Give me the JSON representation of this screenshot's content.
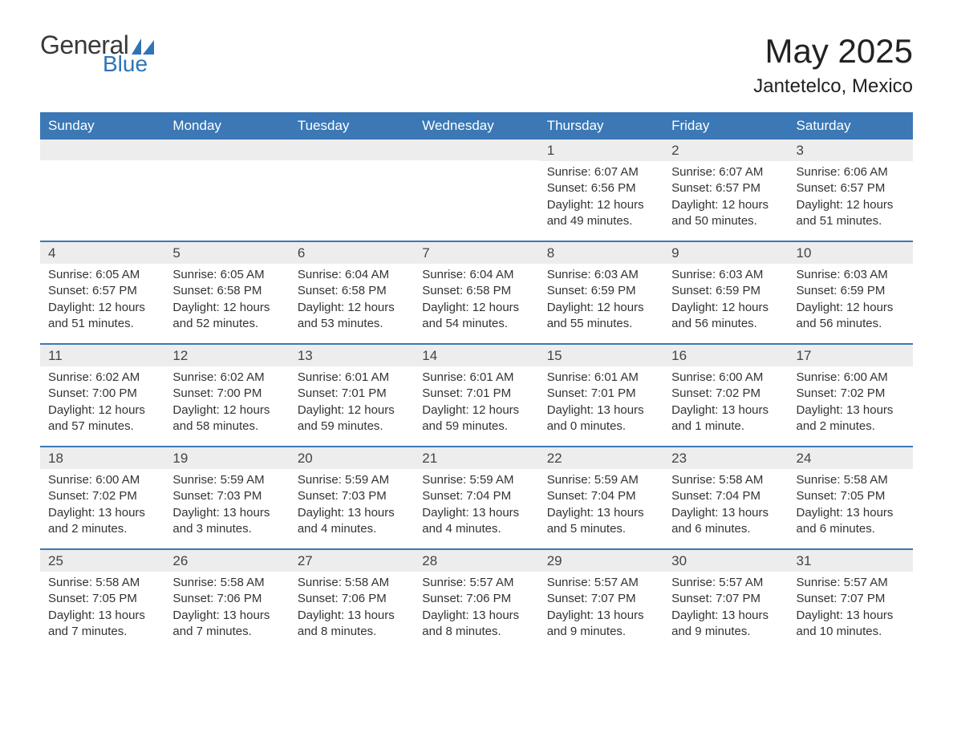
{
  "logo": {
    "word1": "General",
    "word2": "Blue",
    "flag_color": "#2e75b6"
  },
  "title": "May 2025",
  "location": "Jantetelco, Mexico",
  "colors": {
    "header_bg": "#3b78b5",
    "header_text": "#ffffff",
    "daynum_bg": "#ededed",
    "week_divider": "#3b78b5",
    "body_text": "#333333"
  },
  "weekdays": [
    "Sunday",
    "Monday",
    "Tuesday",
    "Wednesday",
    "Thursday",
    "Friday",
    "Saturday"
  ],
  "weeks": [
    [
      null,
      null,
      null,
      null,
      {
        "n": "1",
        "sr": "6:07 AM",
        "ss": "6:56 PM",
        "dl": "12 hours and 49 minutes."
      },
      {
        "n": "2",
        "sr": "6:07 AM",
        "ss": "6:57 PM",
        "dl": "12 hours and 50 minutes."
      },
      {
        "n": "3",
        "sr": "6:06 AM",
        "ss": "6:57 PM",
        "dl": "12 hours and 51 minutes."
      }
    ],
    [
      {
        "n": "4",
        "sr": "6:05 AM",
        "ss": "6:57 PM",
        "dl": "12 hours and 51 minutes."
      },
      {
        "n": "5",
        "sr": "6:05 AM",
        "ss": "6:58 PM",
        "dl": "12 hours and 52 minutes."
      },
      {
        "n": "6",
        "sr": "6:04 AM",
        "ss": "6:58 PM",
        "dl": "12 hours and 53 minutes."
      },
      {
        "n": "7",
        "sr": "6:04 AM",
        "ss": "6:58 PM",
        "dl": "12 hours and 54 minutes."
      },
      {
        "n": "8",
        "sr": "6:03 AM",
        "ss": "6:59 PM",
        "dl": "12 hours and 55 minutes."
      },
      {
        "n": "9",
        "sr": "6:03 AM",
        "ss": "6:59 PM",
        "dl": "12 hours and 56 minutes."
      },
      {
        "n": "10",
        "sr": "6:03 AM",
        "ss": "6:59 PM",
        "dl": "12 hours and 56 minutes."
      }
    ],
    [
      {
        "n": "11",
        "sr": "6:02 AM",
        "ss": "7:00 PM",
        "dl": "12 hours and 57 minutes."
      },
      {
        "n": "12",
        "sr": "6:02 AM",
        "ss": "7:00 PM",
        "dl": "12 hours and 58 minutes."
      },
      {
        "n": "13",
        "sr": "6:01 AM",
        "ss": "7:01 PM",
        "dl": "12 hours and 59 minutes."
      },
      {
        "n": "14",
        "sr": "6:01 AM",
        "ss": "7:01 PM",
        "dl": "12 hours and 59 minutes."
      },
      {
        "n": "15",
        "sr": "6:01 AM",
        "ss": "7:01 PM",
        "dl": "13 hours and 0 minutes."
      },
      {
        "n": "16",
        "sr": "6:00 AM",
        "ss": "7:02 PM",
        "dl": "13 hours and 1 minute."
      },
      {
        "n": "17",
        "sr": "6:00 AM",
        "ss": "7:02 PM",
        "dl": "13 hours and 2 minutes."
      }
    ],
    [
      {
        "n": "18",
        "sr": "6:00 AM",
        "ss": "7:02 PM",
        "dl": "13 hours and 2 minutes."
      },
      {
        "n": "19",
        "sr": "5:59 AM",
        "ss": "7:03 PM",
        "dl": "13 hours and 3 minutes."
      },
      {
        "n": "20",
        "sr": "5:59 AM",
        "ss": "7:03 PM",
        "dl": "13 hours and 4 minutes."
      },
      {
        "n": "21",
        "sr": "5:59 AM",
        "ss": "7:04 PM",
        "dl": "13 hours and 4 minutes."
      },
      {
        "n": "22",
        "sr": "5:59 AM",
        "ss": "7:04 PM",
        "dl": "13 hours and 5 minutes."
      },
      {
        "n": "23",
        "sr": "5:58 AM",
        "ss": "7:04 PM",
        "dl": "13 hours and 6 minutes."
      },
      {
        "n": "24",
        "sr": "5:58 AM",
        "ss": "7:05 PM",
        "dl": "13 hours and 6 minutes."
      }
    ],
    [
      {
        "n": "25",
        "sr": "5:58 AM",
        "ss": "7:05 PM",
        "dl": "13 hours and 7 minutes."
      },
      {
        "n": "26",
        "sr": "5:58 AM",
        "ss": "7:06 PM",
        "dl": "13 hours and 7 minutes."
      },
      {
        "n": "27",
        "sr": "5:58 AM",
        "ss": "7:06 PM",
        "dl": "13 hours and 8 minutes."
      },
      {
        "n": "28",
        "sr": "5:57 AM",
        "ss": "7:06 PM",
        "dl": "13 hours and 8 minutes."
      },
      {
        "n": "29",
        "sr": "5:57 AM",
        "ss": "7:07 PM",
        "dl": "13 hours and 9 minutes."
      },
      {
        "n": "30",
        "sr": "5:57 AM",
        "ss": "7:07 PM",
        "dl": "13 hours and 9 minutes."
      },
      {
        "n": "31",
        "sr": "5:57 AM",
        "ss": "7:07 PM",
        "dl": "13 hours and 10 minutes."
      }
    ]
  ],
  "labels": {
    "sunrise": "Sunrise: ",
    "sunset": "Sunset: ",
    "daylight": "Daylight: "
  }
}
